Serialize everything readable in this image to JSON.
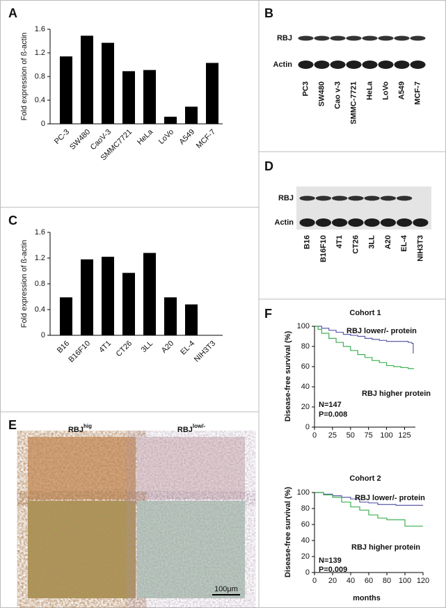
{
  "chart_data": [
    {
      "type": "bar",
      "panel": "A",
      "ylabel": "Fold expression of ß-actin",
      "color": "#000000",
      "categories": [
        "PC-3",
        "SW480",
        "CaoV-3",
        "SMMC7721",
        "HeLa",
        "LoVo",
        "A549",
        "MCF-7"
      ],
      "values": [
        1.14,
        1.49,
        1.37,
        0.89,
        0.91,
        0.12,
        0.29,
        1.03
      ],
      "ylim": [
        0,
        1.6
      ],
      "yticks": [
        0,
        0.4,
        0.8,
        1.2,
        1.6
      ]
    },
    {
      "type": "bar",
      "panel": "C",
      "ylabel": "Fold expression of ß-actin",
      "color": "#000000",
      "categories": [
        "B16",
        "B16F10",
        "4T1",
        "CT26",
        "3LL",
        "A20",
        "EL-4",
        "NIH3T3"
      ],
      "values": [
        0.59,
        1.18,
        1.22,
        0.97,
        1.28,
        0.59,
        0.48,
        0
      ],
      "ylim": [
        0,
        1.6
      ],
      "yticks": [
        0,
        0.4,
        0.8,
        1.2,
        1.6
      ]
    },
    {
      "type": "line",
      "panel": "F",
      "title": "Cohort 1",
      "ylabel": "Disease-free survival (%)",
      "annotations": [
        "RBJ lower/- protein",
        "RBJ higher protein",
        "N=147",
        "P=0.008"
      ],
      "xlim": [
        0,
        140
      ],
      "xticks": [
        0,
        25,
        50,
        75,
        100,
        125
      ],
      "ylim": [
        0,
        100
      ],
      "yticks": [
        0,
        20,
        40,
        60,
        80,
        100
      ],
      "series": [
        {
          "color": "#5a5aa8",
          "x": [
            0,
            5,
            10,
            20,
            30,
            40,
            50,
            60,
            70,
            80,
            90,
            100,
            110,
            120,
            130,
            135,
            137
          ],
          "values": [
            100,
            100,
            98,
            96,
            94,
            92,
            91,
            90,
            88,
            87,
            86,
            85,
            85,
            85,
            84,
            83,
            73
          ]
        },
        {
          "color": "#3cb050",
          "x": [
            0,
            5,
            10,
            20,
            30,
            40,
            50,
            60,
            70,
            80,
            90,
            100,
            110,
            120,
            130,
            138
          ],
          "values": [
            100,
            97,
            93,
            88,
            84,
            80,
            76,
            72,
            69,
            66,
            64,
            61,
            60,
            59,
            58,
            58
          ]
        }
      ]
    },
    {
      "type": "line",
      "panel": null,
      "title": "Cohort 2",
      "ylabel": "Disease-free survival (%)",
      "xlabel": "months",
      "annotations": [
        "RBJ lower/- protein",
        "RBJ higher protein",
        "N=139",
        "P=0.009"
      ],
      "xlim": [
        0,
        120
      ],
      "xticks": [
        0,
        20,
        40,
        60,
        80,
        100,
        120
      ],
      "ylim": [
        0,
        100
      ],
      "yticks": [
        0,
        20,
        40,
        60,
        80,
        100
      ],
      "series": [
        {
          "color": "#5a5aa8",
          "x": [
            0,
            10,
            20,
            30,
            40,
            50,
            60,
            70,
            80,
            90,
            100,
            110,
            120
          ],
          "values": [
            100,
            98,
            96,
            94,
            92,
            88,
            87,
            85,
            85,
            84,
            84,
            84,
            84
          ]
        },
        {
          "color": "#3cb050",
          "x": [
            0,
            10,
            20,
            30,
            40,
            50,
            60,
            70,
            80,
            90,
            100,
            110,
            120
          ],
          "values": [
            100,
            97,
            94,
            88,
            82,
            78,
            72,
            68,
            66,
            66,
            58,
            58,
            58
          ]
        }
      ]
    }
  ],
  "blots": [
    {
      "panel": "B",
      "rows": [
        "RBJ",
        "Actin"
      ],
      "lanes": [
        "PC3",
        "SW480",
        "Cao v-3",
        "SMMC-7721",
        "HeLa",
        "LoVo",
        "A549",
        "MCF-7"
      ]
    },
    {
      "panel": "D",
      "rows": [
        "RBJ",
        "Actin"
      ],
      "lanes": [
        "B16",
        "B16F10",
        "4T1",
        "CT26",
        "3LL",
        "A20",
        "EL-4",
        "NIH3T3"
      ]
    }
  ],
  "histology": {
    "panel": "E",
    "columns": [
      {
        "base": "RBJ",
        "sup": "hig"
      },
      {
        "base": "RBJ",
        "sup": "low/-"
      }
    ],
    "scale_bar": "100μm"
  }
}
